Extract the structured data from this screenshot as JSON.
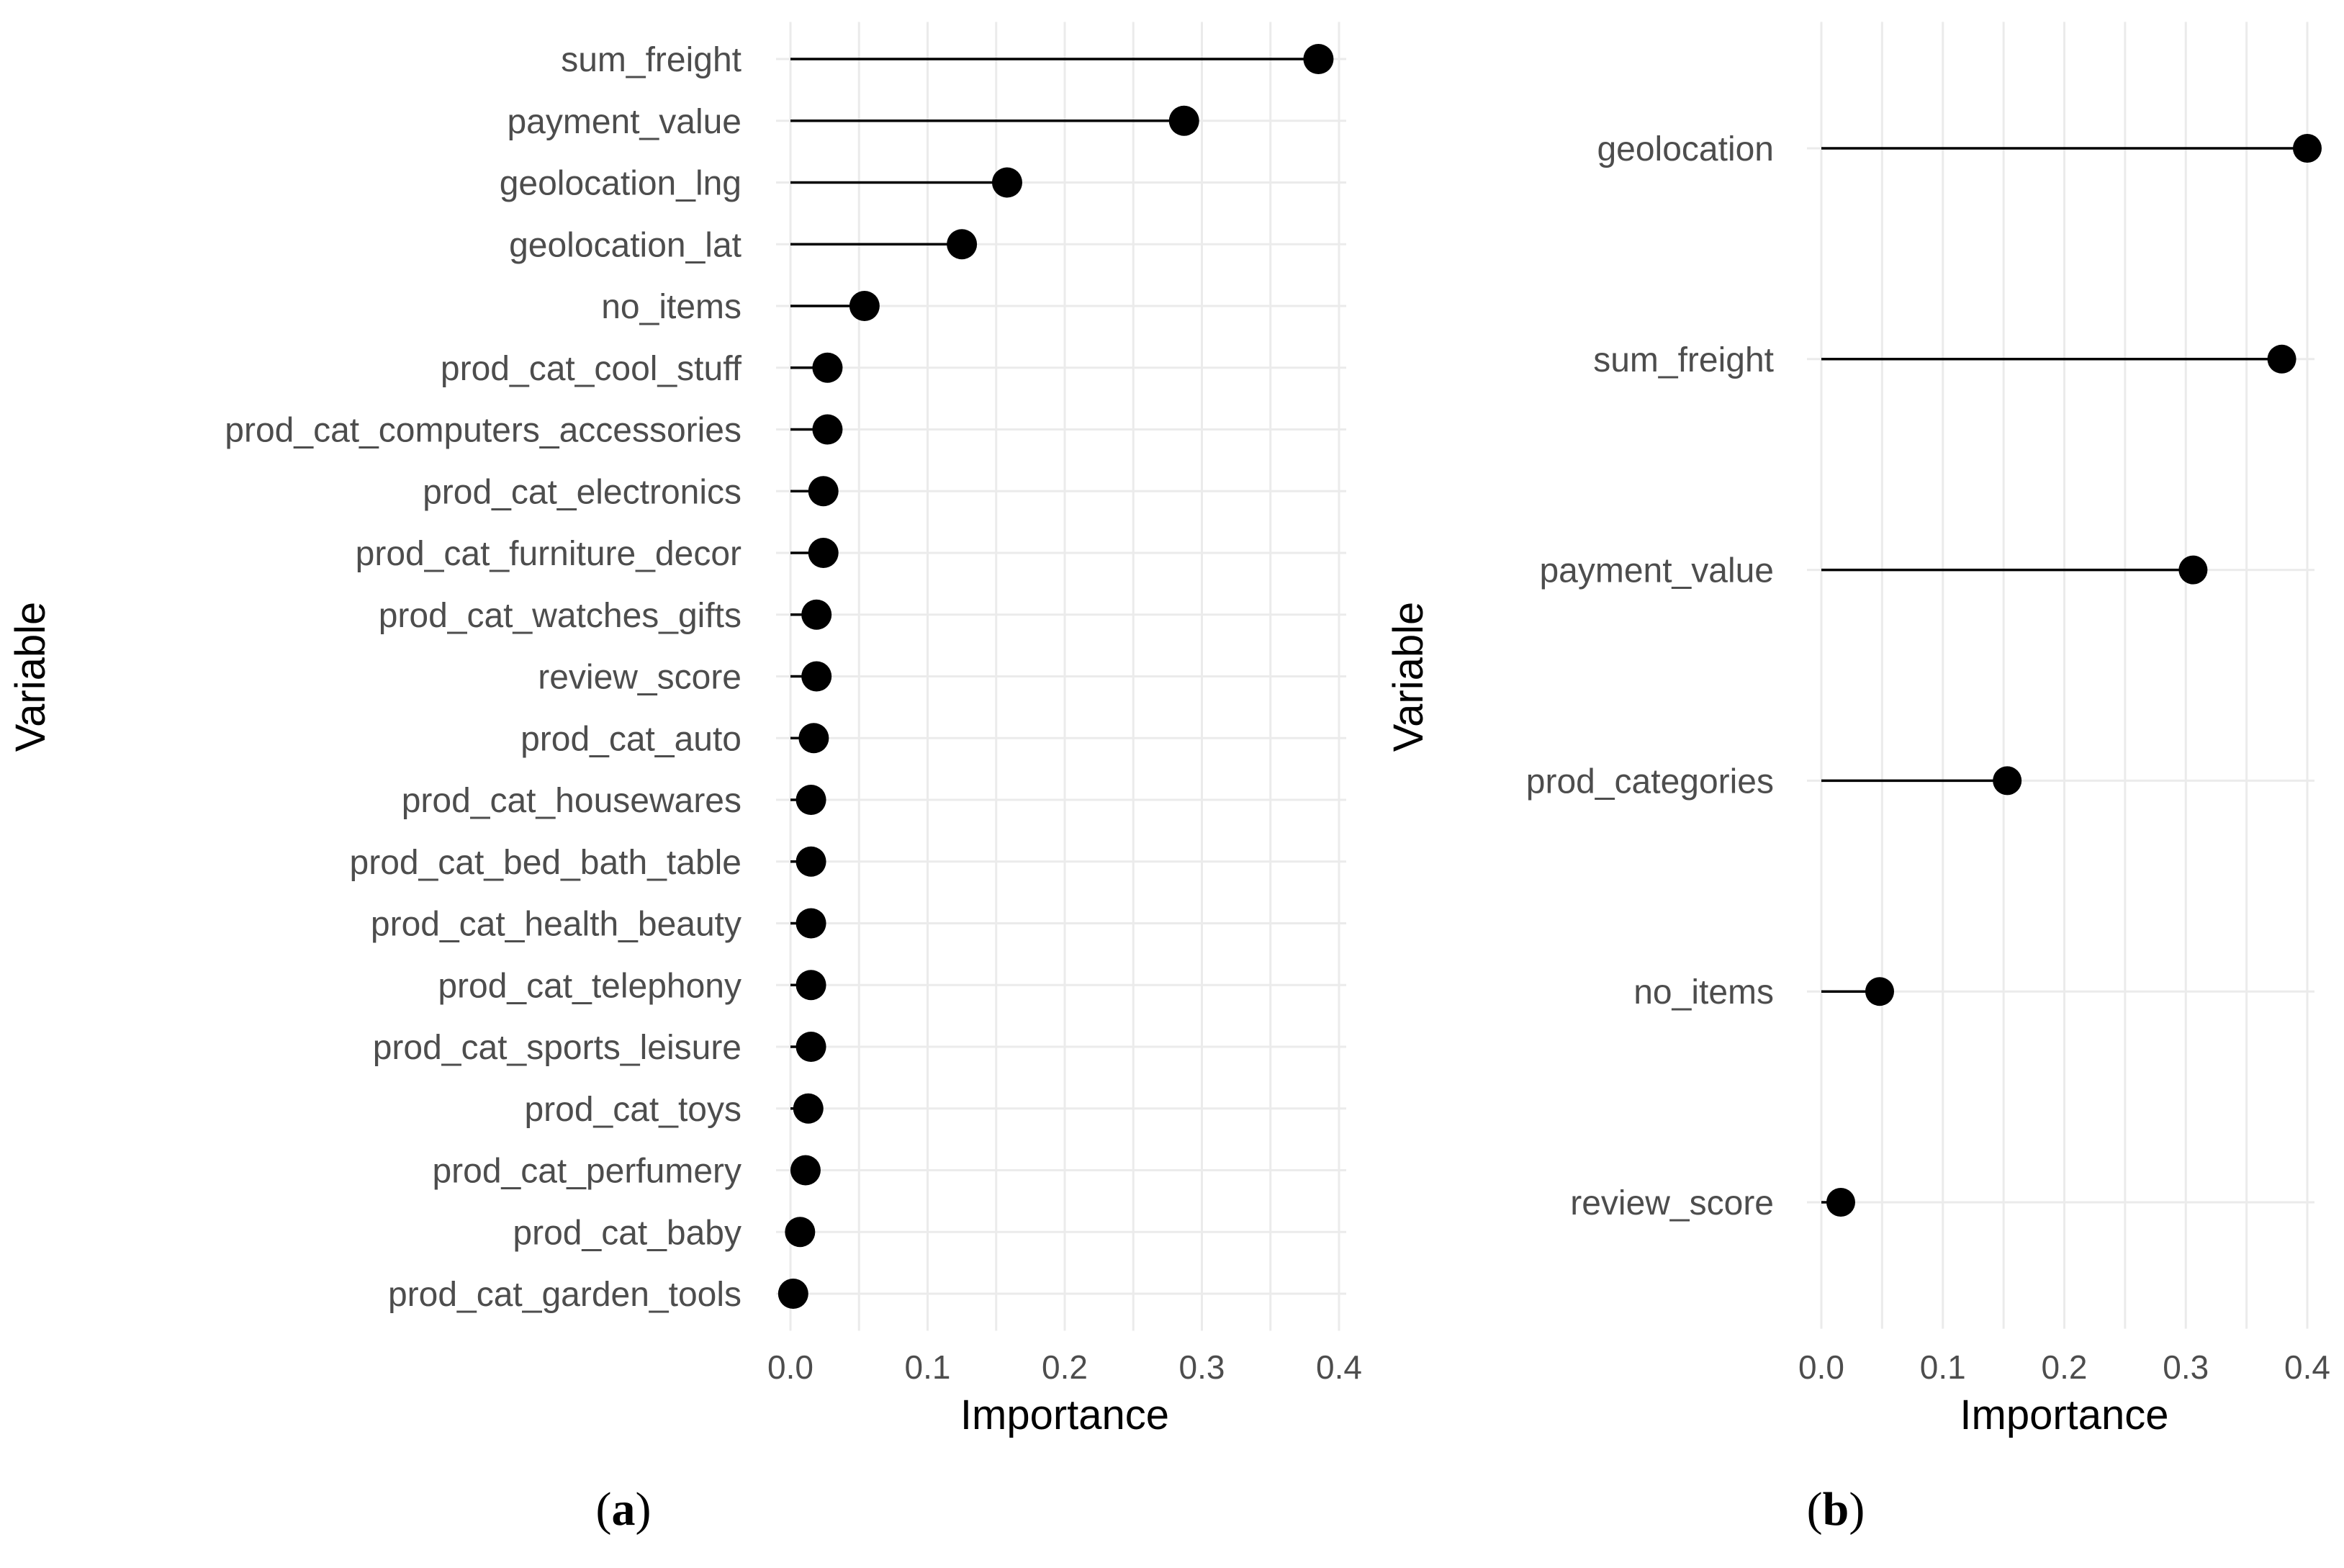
{
  "chart_data": [
    {
      "type": "lollipop",
      "panel_label": "a",
      "xlabel": "Importance",
      "ylabel": "Variable",
      "xlim": [
        0,
        0.4
      ],
      "x_ticks": [
        "0.0",
        "0.1",
        "0.2",
        "0.3",
        "0.4"
      ],
      "categories": [
        "sum_freight",
        "payment_value",
        "geolocation_lng",
        "geolocation_lat",
        "no_items",
        "prod_cat_cool_stuff",
        "prod_cat_computers_accessories",
        "prod_cat_electronics",
        "prod_cat_furniture_decor",
        "prod_cat_watches_gifts",
        "review_score",
        "prod_cat_auto",
        "prod_cat_housewares",
        "prod_cat_bed_bath_table",
        "prod_cat_health_beauty",
        "prod_cat_telephony",
        "prod_cat_sports_leisure",
        "prod_cat_toys",
        "prod_cat_perfumery",
        "prod_cat_baby",
        "prod_cat_garden_tools"
      ],
      "values": [
        0.385,
        0.287,
        0.158,
        0.125,
        0.054,
        0.027,
        0.027,
        0.024,
        0.024,
        0.019,
        0.019,
        0.017,
        0.015,
        0.015,
        0.015,
        0.015,
        0.015,
        0.013,
        0.011,
        0.007,
        0.002
      ],
      "grid": true
    },
    {
      "type": "lollipop",
      "panel_label": "b",
      "xlabel": "Importance",
      "ylabel": "Variable",
      "xlim": [
        0,
        0.4
      ],
      "x_ticks": [
        "0.0",
        "0.1",
        "0.2",
        "0.3",
        "0.4"
      ],
      "categories": [
        "geolocation",
        "sum_freight",
        "payment_value",
        "prod_categories",
        "no_items",
        "review_score"
      ],
      "values": [
        0.4,
        0.379,
        0.306,
        0.153,
        0.048,
        0.016
      ],
      "grid": true
    }
  ]
}
